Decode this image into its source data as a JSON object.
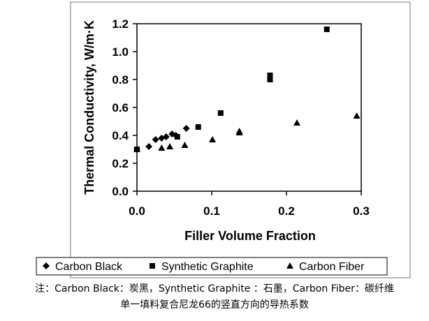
{
  "chart_data": {
    "type": "scatter",
    "xlabel": "Filler Volume Fraction",
    "ylabel": "Thermal Conductivity, W/m·K",
    "xlim": [
      0,
      0.3
    ],
    "ylim": [
      0,
      1.2
    ],
    "x_ticks": [
      "0.0",
      "0.1",
      "0.2",
      "0.3"
    ],
    "y_ticks": [
      "0.0",
      "0.2",
      "0.4",
      "0.6",
      "0.8",
      "1.0",
      "1.2"
    ],
    "grid": false,
    "legend_position": "bottom",
    "series": [
      {
        "name": "Carbon Black",
        "marker": "diamond",
        "points": [
          [
            0.0,
            0.3
          ],
          [
            0.016,
            0.32
          ],
          [
            0.025,
            0.37
          ],
          [
            0.033,
            0.38
          ],
          [
            0.039,
            0.39
          ],
          [
            0.047,
            0.41
          ],
          [
            0.052,
            0.4
          ],
          [
            0.066,
            0.45
          ]
        ]
      },
      {
        "name": "Synthetic Graphite",
        "marker": "square",
        "points": [
          [
            0.0,
            0.3
          ],
          [
            0.054,
            0.39
          ],
          [
            0.082,
            0.46
          ],
          [
            0.112,
            0.56
          ],
          [
            0.178,
            0.8
          ],
          [
            0.178,
            0.83
          ],
          [
            0.254,
            1.16
          ]
        ]
      },
      {
        "name": "Carbon Fiber",
        "marker": "triangle",
        "points": [
          [
            0.0,
            0.3
          ],
          [
            0.033,
            0.31
          ],
          [
            0.044,
            0.32
          ],
          [
            0.064,
            0.33
          ],
          [
            0.101,
            0.37
          ],
          [
            0.137,
            0.42
          ],
          [
            0.137,
            0.43
          ],
          [
            0.214,
            0.49
          ],
          [
            0.294,
            0.54
          ]
        ]
      }
    ]
  },
  "notes": {
    "line1": "注：Carbon Black：炭黑，Synthetic Graphite ：石墨，Carbon Fiber：碳纤维",
    "line2": "单一填料复合尼龙66的竖直方向的导热系数"
  },
  "colors": {
    "marker": "#000000",
    "axis": "#000000",
    "frame": "#777777"
  }
}
